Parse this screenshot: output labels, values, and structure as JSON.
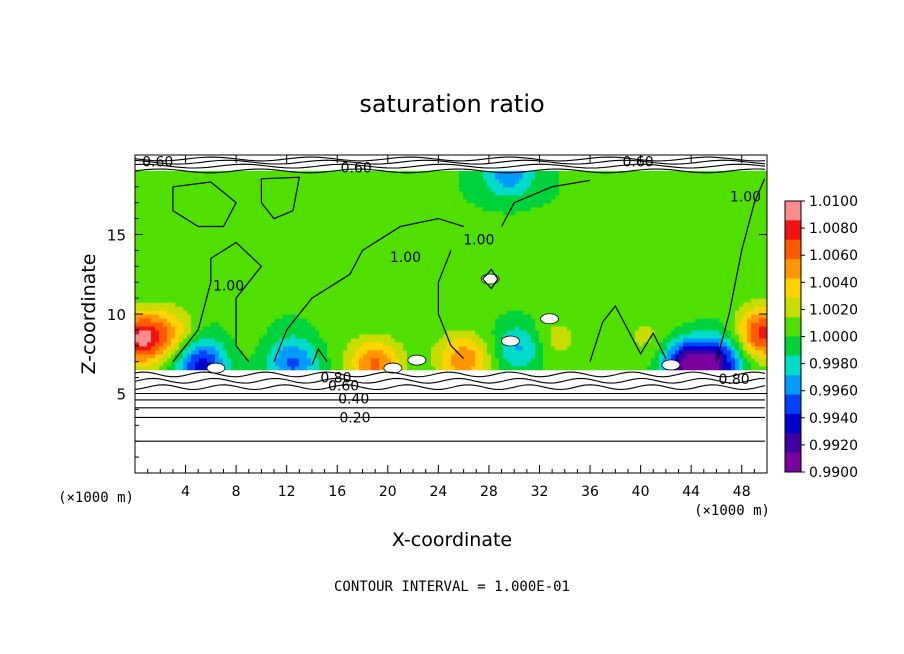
{
  "chart_data": {
    "type": "heatmap",
    "title": "saturation ratio",
    "xlabel": "X-coordinate",
    "ylabel": "Z-coordinate",
    "x_units_label": "(×1000 m)",
    "y_units_label": "(×1000 m)",
    "footer": "CONTOUR INTERVAL = 1.000E-01",
    "xlim": [
      0,
      50
    ],
    "ylim": [
      0,
      20
    ],
    "x_ticks": [
      {
        "value": 4,
        "label": "4"
      },
      {
        "value": 8,
        "label": "8"
      },
      {
        "value": 12,
        "label": "12"
      },
      {
        "value": 16,
        "label": "16"
      },
      {
        "value": 20,
        "label": "20"
      },
      {
        "value": 24,
        "label": "24"
      },
      {
        "value": 28,
        "label": "28"
      },
      {
        "value": 32,
        "label": "32"
      },
      {
        "value": 36,
        "label": "36"
      },
      {
        "value": 40,
        "label": "40"
      },
      {
        "value": 44,
        "label": "44"
      },
      {
        "value": 48,
        "label": "48"
      }
    ],
    "y_ticks": [
      {
        "value": 5,
        "label": "5"
      },
      {
        "value": 10,
        "label": "10"
      },
      {
        "value": 15,
        "label": "15"
      }
    ],
    "colorbar": {
      "min": 0.99,
      "max": 1.01,
      "labels": [
        "1.0100",
        "1.0080",
        "1.0060",
        "1.0040",
        "1.0020",
        "1.0000",
        "0.9980",
        "0.9960",
        "0.9940",
        "0.9920",
        "0.9900"
      ],
      "colors": [
        "#ff8c8c",
        "#f31212",
        "#ff5a00",
        "#ff9600",
        "#ffd200",
        "#c8dc00",
        "#50e000",
        "#00d23c",
        "#00dcc8",
        "#009bff",
        "#0040ff",
        "#0000cc",
        "#4000a0",
        "#7a00a0"
      ]
    },
    "contour_labels": [
      {
        "text": "0.60",
        "x": 1.8,
        "z": 19.6
      },
      {
        "text": "0.60",
        "x": 17.5,
        "z": 19.2
      },
      {
        "text": "0.60",
        "x": 39.8,
        "z": 19.6
      },
      {
        "text": "1.00",
        "x": 7.4,
        "z": 11.8
      },
      {
        "text": "1.00",
        "x": 21.4,
        "z": 13.6
      },
      {
        "text": "1.00",
        "x": 27.2,
        "z": 14.7
      },
      {
        "text": "1.00",
        "x": 48.3,
        "z": 17.4
      },
      {
        "text": "0.80",
        "x": 15.9,
        "z": 6.0
      },
      {
        "text": "0.60",
        "x": 16.5,
        "z": 5.5
      },
      {
        "text": "0.40",
        "x": 17.3,
        "z": 4.7
      },
      {
        "text": "0.20",
        "x": 17.4,
        "z": 3.5
      },
      {
        "text": "0.80",
        "x": 47.4,
        "z": 5.9
      }
    ],
    "field": {
      "base_value": 1.0003,
      "cloud_base_z": 6.5,
      "cloud_top_z": 19.0,
      "hotspots": [
        {
          "x": 0.4,
          "z": 8.5,
          "value": 1.0085
        },
        {
          "x": 49.6,
          "z": 8.8,
          "value": 1.0075
        },
        {
          "x": 19.0,
          "z": 6.9,
          "value": 1.006
        },
        {
          "x": 26.0,
          "z": 7.2,
          "value": 1.0055
        },
        {
          "x": 3.0,
          "z": 8.8,
          "value": 1.0035
        },
        {
          "x": 33.0,
          "z": 8.5,
          "value": 1.0025
        },
        {
          "x": 40.5,
          "z": 8.6,
          "value": 1.002
        },
        {
          "x": 5.2,
          "z": 6.8,
          "value": 0.9935
        },
        {
          "x": 43.8,
          "z": 6.8,
          "value": 0.9912
        },
        {
          "x": 46.2,
          "z": 6.9,
          "value": 0.9935
        },
        {
          "x": 12.5,
          "z": 6.9,
          "value": 0.9955
        },
        {
          "x": 30.5,
          "z": 8.0,
          "value": 0.9965
        },
        {
          "x": 29.6,
          "z": 18.8,
          "value": 0.996
        }
      ]
    },
    "white_gaps": [
      {
        "x": 6.4,
        "z": 6.6
      },
      {
        "x": 20.4,
        "z": 6.6
      },
      {
        "x": 22.3,
        "z": 7.1
      },
      {
        "x": 29.7,
        "z": 8.3
      },
      {
        "x": 32.8,
        "z": 9.7
      },
      {
        "x": 28.1,
        "z": 12.2
      },
      {
        "x": 42.4,
        "z": 6.8
      }
    ]
  }
}
